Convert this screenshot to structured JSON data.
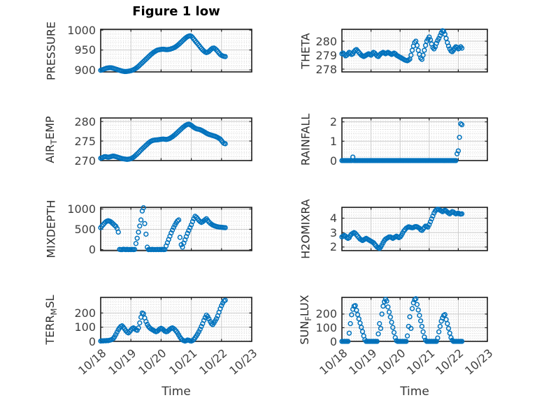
{
  "figure": {
    "title": "Figure 1 low",
    "xlabel": "Time",
    "x_tick_labels": [
      "10/18",
      "10/19",
      "10/20",
      "10/21",
      "10/22",
      "10/23"
    ],
    "x_ticks_hours": [
      0,
      24,
      48,
      72,
      96,
      120
    ],
    "x_unit": "hours since 10/18 00:00",
    "marker_color": "#0072BD",
    "axis_box_color": "#1c1c1c",
    "grid_major_color": "#c9c9c9",
    "grid_minor_color": "#d2d2d2",
    "tick_label_color": "#404040"
  },
  "chart_data": [
    {
      "name": "pressure",
      "type": "scatter",
      "ylabel": "PRESSURE",
      "ylabel_segments": [
        {
          "text": "PRESSURE",
          "sub": false
        }
      ],
      "yticks": [
        900,
        950,
        1000
      ],
      "ylim": [
        895,
        1002
      ],
      "y_minor_step": 10,
      "x_start_hour": 0,
      "x_step_hours": 1,
      "values": [
        899,
        900,
        901,
        902.5,
        903.5,
        904.5,
        905,
        905.5,
        905.5,
        905,
        904,
        903,
        902,
        901,
        900,
        899,
        898,
        897.2,
        896.5,
        896,
        896,
        896.3,
        896.8,
        897.3,
        898,
        899,
        900.5,
        902,
        904,
        906.5,
        909,
        912,
        915,
        918,
        921,
        924,
        927,
        930,
        933,
        936,
        939,
        941.5,
        944,
        946,
        948,
        949.5,
        950.5,
        951,
        951.5,
        952,
        952,
        951.5,
        951,
        951,
        951.5,
        952,
        953,
        954,
        955.5,
        957,
        959,
        961.5,
        964,
        967,
        970,
        973,
        976,
        979,
        981.5,
        983.5,
        985,
        985.8,
        984.5,
        981.5,
        977.5,
        973.5,
        969.5,
        966,
        962,
        958,
        954,
        950.5,
        947.5,
        945,
        943.5,
        944.5,
        946.5,
        949.5,
        952.5,
        954.5,
        955,
        953,
        950,
        946.5,
        942.5,
        939,
        936.5,
        935,
        934,
        933.5
      ]
    },
    {
      "name": "theta",
      "type": "scatter",
      "ylabel": "THETA",
      "ylabel_segments": [
        {
          "text": "THETA",
          "sub": false
        }
      ],
      "yticks": [
        278,
        279,
        280
      ],
      "ylim": [
        277.8,
        280.85
      ],
      "y_minor_step": 0.2,
      "x_start_hour": 0,
      "x_step_hours": 1,
      "values": [
        279.1,
        279.15,
        279.05,
        278.95,
        279.0,
        279.1,
        279.2,
        279.15,
        279.05,
        279.1,
        279.25,
        279.35,
        279.4,
        279.3,
        279.2,
        279.1,
        279.0,
        278.95,
        278.9,
        278.95,
        279.0,
        279.05,
        279.1,
        279.05,
        279.0,
        279.1,
        279.2,
        279.15,
        279.05,
        278.95,
        278.9,
        279.0,
        279.1,
        279.15,
        279.2,
        279.15,
        279.1,
        279.15,
        279.2,
        279.15,
        279.1,
        279.05,
        279.1,
        279.15,
        279.1,
        279.0,
        278.95,
        278.9,
        278.85,
        278.8,
        278.75,
        278.7,
        278.65,
        278.62,
        278.6,
        278.65,
        278.72,
        279.0,
        279.35,
        279.65,
        279.9,
        280.0,
        279.7,
        279.35,
        279.05,
        278.8,
        278.7,
        279.0,
        279.35,
        279.7,
        280.0,
        280.15,
        280.3,
        280.1,
        279.8,
        279.55,
        279.45,
        279.6,
        279.85,
        280.05,
        280.2,
        280.4,
        280.6,
        280.75,
        280.7,
        280.5,
        280.2,
        279.9,
        279.65,
        279.45,
        279.3,
        279.25,
        279.35,
        279.5,
        279.6,
        279.55,
        279.45,
        279.5,
        279.6,
        279.5
      ]
    },
    {
      "name": "airtemp",
      "type": "scatter",
      "ylabel": "AIR_TEMP",
      "ylabel_segments": [
        {
          "text": "AIR",
          "sub": false
        },
        {
          "text": "T",
          "sub": true
        },
        {
          "text": "EMP",
          "sub": false
        }
      ],
      "yticks": [
        270,
        275,
        280
      ],
      "ylim": [
        270,
        280.9
      ],
      "y_minor_step": 1,
      "x_start_hour": 0,
      "x_step_hours": 1,
      "values": [
        270.6,
        270.7,
        270.85,
        271.0,
        271.0,
        270.9,
        270.85,
        270.9,
        271.0,
        271.1,
        271.15,
        271.1,
        271.0,
        270.9,
        270.8,
        270.7,
        270.6,
        270.5,
        270.45,
        270.4,
        270.35,
        270.3,
        270.35,
        270.4,
        270.5,
        270.65,
        270.85,
        271.1,
        271.4,
        271.7,
        272.0,
        272.35,
        272.7,
        273.0,
        273.3,
        273.6,
        273.9,
        274.2,
        274.5,
        274.75,
        274.95,
        275.1,
        275.2,
        275.25,
        275.3,
        275.3,
        275.35,
        275.4,
        275.45,
        275.5,
        275.5,
        275.45,
        275.4,
        275.45,
        275.55,
        275.7,
        275.9,
        276.1,
        276.35,
        276.6,
        276.9,
        277.2,
        277.5,
        277.8,
        278.1,
        278.4,
        278.65,
        278.9,
        279.1,
        279.25,
        279.3,
        279.2,
        279.0,
        278.75,
        278.5,
        278.3,
        278.15,
        278.05,
        278.0,
        277.9,
        277.75,
        277.6,
        277.4,
        277.2,
        277.0,
        276.85,
        276.7,
        276.6,
        276.5,
        276.4,
        276.3,
        276.2,
        276.05,
        275.9,
        275.7,
        275.5,
        275.1,
        274.7,
        274.4,
        274.3
      ]
    },
    {
      "name": "rainfall",
      "type": "scatter",
      "ylabel": "RAINFALL",
      "ylabel_segments": [
        {
          "text": "RAINFALL",
          "sub": false
        }
      ],
      "yticks": [
        0,
        1,
        2
      ],
      "ylim": [
        0,
        2.2
      ],
      "y_minor_step": 0.2,
      "x_start_hour": 0,
      "x_step_hours": 1,
      "values": [
        0,
        0,
        0,
        0,
        0,
        0,
        0,
        0,
        0,
        0.18,
        0,
        0,
        0,
        0,
        0,
        0,
        0,
        0,
        0,
        0,
        0,
        0,
        0,
        0,
        0,
        0,
        0,
        0,
        0,
        0,
        0,
        0,
        0,
        0,
        0,
        0,
        0,
        0,
        0,
        0,
        0,
        0,
        0,
        0,
        0,
        0,
        0,
        0,
        0,
        0,
        0,
        0,
        0,
        0,
        0,
        0,
        0,
        0,
        0,
        0,
        0,
        0,
        0,
        0,
        0,
        0,
        0,
        0,
        0,
        0,
        0,
        0,
        0,
        0,
        0,
        0,
        0,
        0,
        0,
        0,
        0,
        0,
        0,
        0,
        0,
        0,
        0,
        0,
        0,
        0,
        0,
        0,
        0,
        0,
        0,
        0.35,
        0.5,
        1.2,
        1.9,
        1.85
      ]
    },
    {
      "name": "mixdepth",
      "type": "scatter",
      "ylabel": "MIXDEPTH",
      "ylabel_segments": [
        {
          "text": "MIXDEPTH",
          "sub": false
        }
      ],
      "yticks": [
        0,
        500,
        1000
      ],
      "ylim": [
        -25,
        1040
      ],
      "y_minor_step": 100,
      "x_start_hour": 0,
      "x_step_hours": 1,
      "values": [
        540,
        580,
        615,
        650,
        680,
        700,
        710,
        700,
        685,
        660,
        630,
        600,
        575,
        520,
        430,
        5,
        0,
        0,
        8,
        4,
        0,
        6,
        0,
        3,
        0,
        5,
        0,
        4,
        150,
        280,
        430,
        580,
        730,
        950,
        1030,
        640,
        380,
        60,
        0,
        4,
        0,
        6,
        0,
        3,
        0,
        5,
        0,
        4,
        0,
        6,
        0,
        3,
        90,
        170,
        250,
        330,
        410,
        480,
        545,
        605,
        660,
        705,
        730,
        300,
        120,
        60,
        160,
        240,
        320,
        400,
        470,
        540,
        610,
        690,
        760,
        820,
        795,
        760,
        720,
        690,
        670,
        685,
        710,
        735,
        760,
        720,
        680,
        650,
        625,
        605,
        590,
        578,
        568,
        560,
        555,
        552,
        548,
        545,
        542,
        540
      ]
    },
    {
      "name": "h2omixra",
      "type": "scatter",
      "ylabel": "H2OMIXRA",
      "ylabel_segments": [
        {
          "text": "H2OMIXRA",
          "sub": false
        }
      ],
      "yticks": [
        2,
        3,
        4
      ],
      "ylim": [
        1.75,
        4.75
      ],
      "y_minor_step": 0.2,
      "x_start_hour": 0,
      "x_step_hours": 1,
      "values": [
        2.7,
        2.75,
        2.8,
        2.75,
        2.65,
        2.6,
        2.65,
        2.8,
        2.9,
        2.95,
        3.0,
        2.95,
        2.85,
        2.75,
        2.65,
        2.55,
        2.5,
        2.45,
        2.5,
        2.55,
        2.6,
        2.55,
        2.5,
        2.45,
        2.4,
        2.35,
        2.3,
        2.2,
        2.1,
        2.0,
        1.95,
        1.9,
        2.0,
        2.15,
        2.3,
        2.45,
        2.55,
        2.6,
        2.65,
        2.7,
        2.7,
        2.65,
        2.6,
        2.65,
        2.7,
        2.75,
        2.7,
        2.65,
        2.7,
        2.8,
        2.95,
        3.1,
        3.2,
        3.3,
        3.35,
        3.4,
        3.38,
        3.35,
        3.33,
        3.35,
        3.4,
        3.42,
        3.4,
        3.35,
        3.3,
        3.2,
        3.15,
        3.25,
        3.35,
        3.45,
        3.42,
        3.38,
        3.55,
        3.75,
        3.95,
        4.15,
        4.35,
        4.5,
        4.58,
        4.62,
        4.6,
        4.55,
        4.5,
        4.45,
        4.5,
        4.55,
        4.5,
        4.42,
        4.35,
        4.3,
        4.38,
        4.45,
        4.42,
        4.35,
        4.3,
        4.32,
        4.35,
        4.3,
        4.28,
        4.3
      ]
    },
    {
      "name": "terrmsl",
      "type": "scatter",
      "ylabel": "TERR_MSL",
      "ylabel_segments": [
        {
          "text": "TERR",
          "sub": false
        },
        {
          "text": "M",
          "sub": true
        },
        {
          "text": "SL",
          "sub": false
        }
      ],
      "yticks": [
        0,
        100,
        200
      ],
      "ylim": [
        0,
        310
      ],
      "y_minor_step": 20,
      "x_start_hour": 0,
      "x_step_hours": 1,
      "values": [
        2,
        4,
        3,
        5,
        4,
        6,
        5,
        8,
        10,
        14,
        20,
        32,
        48,
        65,
        82,
        95,
        105,
        110,
        100,
        88,
        75,
        65,
        60,
        68,
        80,
        90,
        95,
        90,
        82,
        78,
        95,
        130,
        170,
        200,
        195,
        165,
        140,
        120,
        105,
        95,
        88,
        82,
        78,
        72,
        68,
        72,
        80,
        88,
        92,
        88,
        80,
        72,
        68,
        70,
        78,
        86,
        92,
        95,
        90,
        82,
        72,
        60,
        45,
        30,
        18,
        10,
        5,
        2,
        5,
        10,
        8,
        4,
        2,
        6,
        14,
        25,
        38,
        52,
        68,
        85,
        105,
        125,
        148,
        168,
        185,
        175,
        158,
        140,
        125,
        118,
        130,
        145,
        160,
        180,
        205,
        230,
        252,
        270,
        285,
        290
      ]
    },
    {
      "name": "sunflux",
      "type": "scatter",
      "ylabel": "SUN_FLUX",
      "ylabel_segments": [
        {
          "text": "SUN",
          "sub": false
        },
        {
          "text": "F",
          "sub": true
        },
        {
          "text": "LUX",
          "sub": false
        }
      ],
      "yticks": [
        0,
        100,
        200
      ],
      "ylim": [
        0,
        322
      ],
      "y_minor_step": 20,
      "x_start_hour": 0,
      "x_step_hours": 1,
      "values": [
        0,
        0,
        0,
        0,
        0,
        0,
        60,
        130,
        195,
        235,
        258,
        262,
        228,
        196,
        165,
        134,
        103,
        72,
        40,
        12,
        0,
        0,
        0,
        0,
        0,
        0,
        0,
        0,
        0,
        0,
        55,
        130,
        95,
        200,
        258,
        290,
        308,
        295,
        252,
        215,
        178,
        140,
        102,
        65,
        28,
        5,
        0,
        0,
        0,
        0,
        0,
        0,
        0,
        0,
        40,
        110,
        180,
        95,
        240,
        282,
        305,
        312,
        270,
        230,
        190,
        150,
        110,
        70,
        32,
        8,
        0,
        0,
        0,
        0,
        0,
        0,
        0,
        0,
        0,
        25,
        70,
        110,
        148,
        172,
        190,
        196,
        160,
        130,
        95,
        60,
        28,
        8,
        0,
        0,
        0,
        0,
        0,
        0,
        0,
        0
      ]
    }
  ]
}
